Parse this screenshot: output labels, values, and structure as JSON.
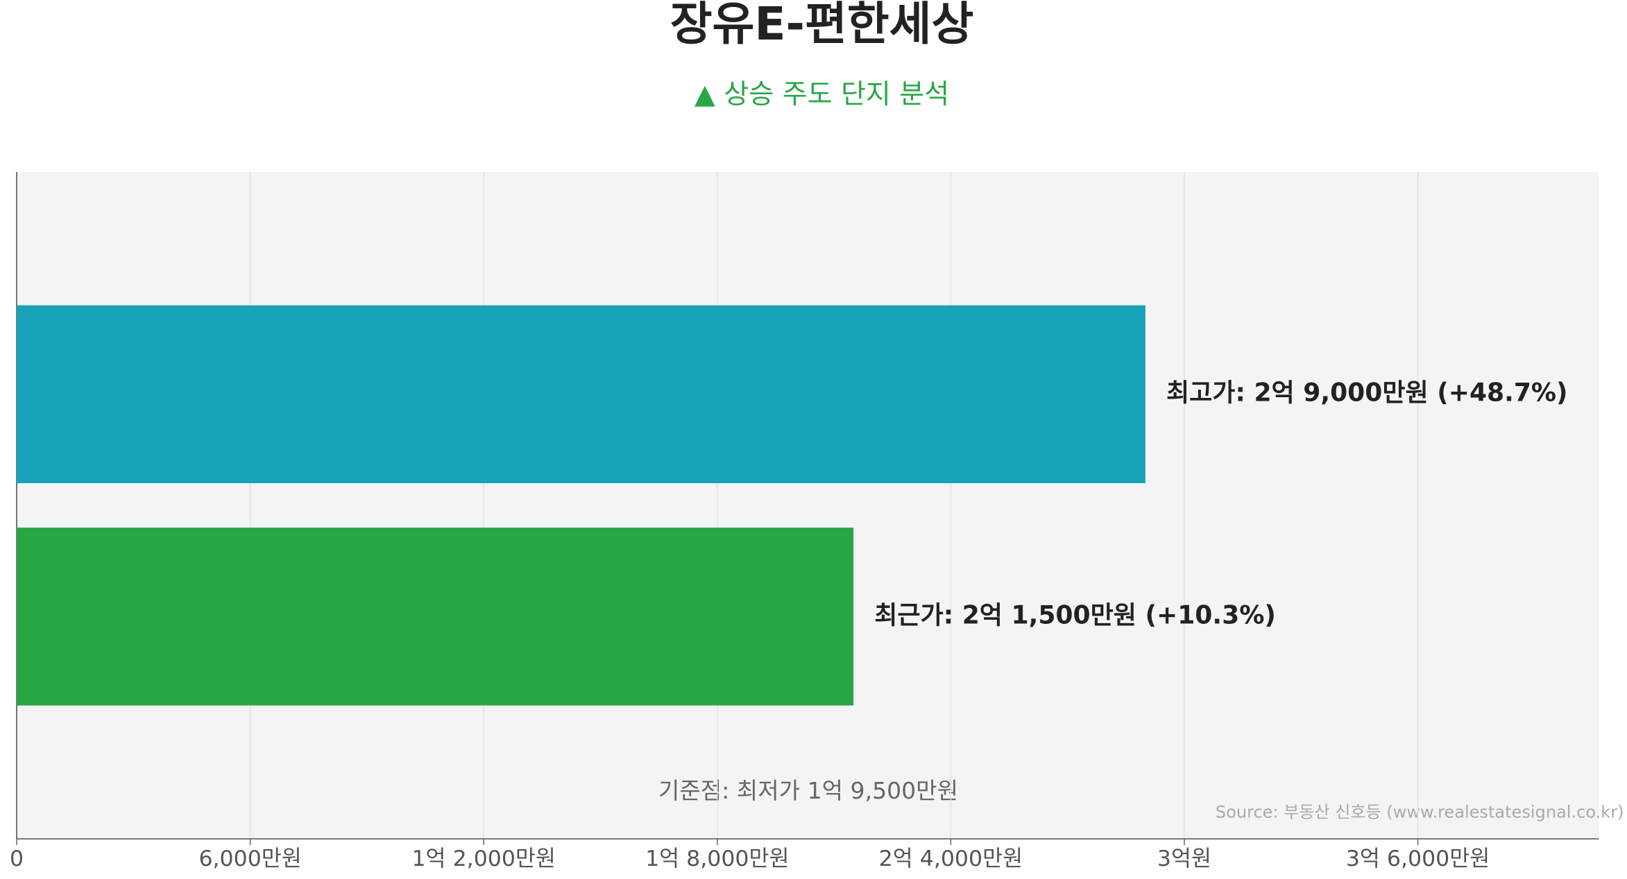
{
  "chart_data": {
    "type": "bar",
    "orientation": "horizontal",
    "title": "장유E-편한세상",
    "subtitle": "▲ 상승 주도 단지 분석",
    "categories": [
      null,
      null
    ],
    "values": [
      29000,
      21500
    ],
    "value_labels": [
      "최고가: 2억 9,000만원 (+48.7%)",
      "최근가: 2억 1,500만원 (+10.3%)"
    ],
    "colors": [
      "#17a2b8",
      "#28a745"
    ],
    "xlim": [
      0,
      40650
    ],
    "xticks": [
      0,
      {
        "value": 6000,
        "label": "6,000만원"
      },
      {
        "value": 12000,
        "label": "1억 2,000만원"
      },
      {
        "value": 18000,
        "label": "1억 8,000만원"
      },
      {
        "value": 24000,
        "label": "2억 4,000만원"
      },
      {
        "value": 30000,
        "label": "3억원"
      },
      {
        "value": 36000,
        "label": "3억 6,000만원"
      }
    ],
    "grid": true,
    "annotation": "기준점: 최저가 1억 9,500만원",
    "source": "Source: 부동산 신호등 (www.realestatesignal.co.kr)"
  }
}
